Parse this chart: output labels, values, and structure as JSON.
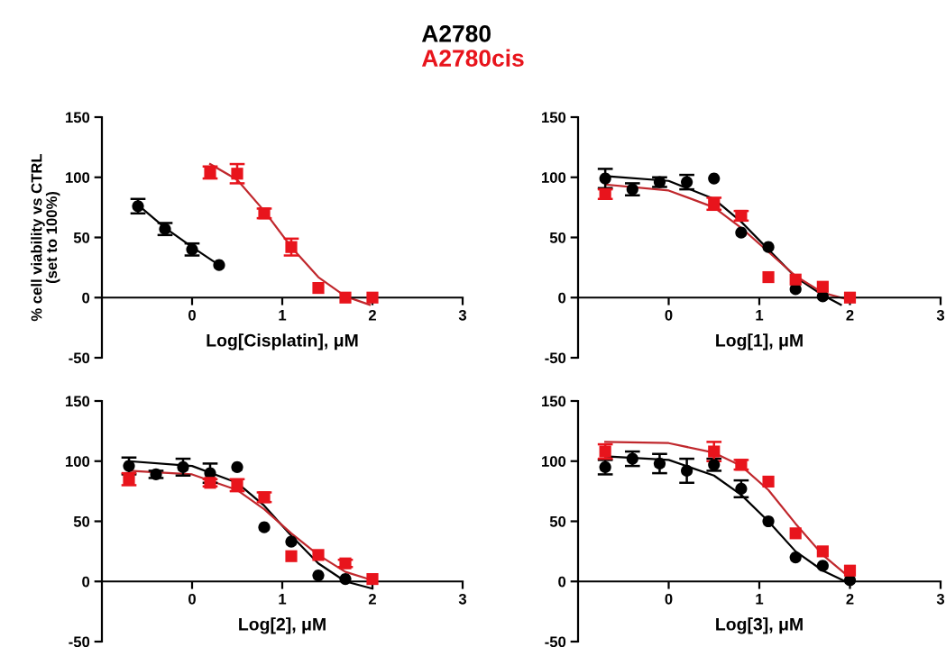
{
  "chart_data": [
    {
      "type": "scatter",
      "xlabel": "Log[Cisplatin], μM",
      "ylabel": "% cell viability vs CTRL\n(set to 100%)",
      "xlim": [
        -1,
        3
      ],
      "ylim": [
        -50,
        150
      ],
      "xticks": [
        0,
        1,
        2,
        3
      ],
      "yticks": [
        -50,
        0,
        50,
        100,
        150
      ],
      "grid": false,
      "legend": "top",
      "series": [
        {
          "type": "line",
          "color": "#000000",
          "x": [
            -0.6,
            -0.3,
            0,
            0.3
          ],
          "values": [
            77,
            58,
            42,
            27
          ]
        },
        {
          "type": "line",
          "color": "#c0282d",
          "x": [
            0.2,
            0.5,
            0.8,
            1.1,
            1.4,
            1.7,
            1.97
          ],
          "values": [
            111,
            98,
            72,
            42,
            17,
            1,
            -6
          ]
        },
        {
          "name": "A2780",
          "color": "#000000",
          "marker": "circle",
          "x": [
            -0.6,
            -0.3,
            0,
            0.3
          ],
          "values": [
            76,
            57,
            40,
            27
          ],
          "errors": [
            6,
            5,
            5,
            null
          ]
        },
        {
          "name": "A2780cis",
          "color": "#e8141c",
          "marker": "square",
          "x": [
            0.2,
            0.5,
            0.8,
            1.1,
            1.4,
            1.7,
            2.0
          ],
          "values": [
            104,
            103,
            70,
            42,
            8,
            0,
            0
          ],
          "errors": [
            5,
            8,
            4,
            7,
            null,
            null,
            null
          ]
        }
      ]
    },
    {
      "type": "scatter",
      "xlabel": "Log[1], μM",
      "xlim": [
        -1,
        3
      ],
      "ylim": [
        -50,
        150
      ],
      "xticks": [
        0,
        1,
        2,
        3
      ],
      "yticks": [
        -50,
        0,
        50,
        100,
        150
      ],
      "grid": false,
      "series": [
        {
          "type": "line",
          "color": "#000000",
          "x": [
            -0.7,
            0,
            0.5,
            0.8,
            1.1,
            1.4,
            1.7,
            1.9
          ],
          "values": [
            101,
            97,
            82,
            63,
            40,
            17,
            2,
            -6
          ]
        },
        {
          "type": "line",
          "color": "#c0282d",
          "x": [
            -0.7,
            0,
            0.5,
            0.8,
            1.1,
            1.4,
            1.7,
            2.0
          ],
          "values": [
            94,
            89,
            75,
            58,
            38,
            18,
            4,
            -2
          ]
        },
        {
          "color": "#000000",
          "marker": "circle",
          "x": [
            -0.7,
            -0.4,
            -0.1,
            0.2,
            0.5,
            0.8,
            1.1,
            1.4,
            1.7
          ],
          "values": [
            99,
            90,
            96,
            96,
            99,
            54,
            42,
            7,
            1
          ],
          "errors": [
            8,
            5,
            4,
            6,
            null,
            null,
            null,
            null,
            null
          ]
        },
        {
          "color": "#e8141c",
          "marker": "square",
          "x": [
            -0.7,
            0.5,
            0.8,
            1.1,
            1.4,
            1.7,
            2.0
          ],
          "values": [
            86,
            78,
            68,
            17,
            15,
            9,
            0
          ],
          "errors": [
            4,
            5,
            4,
            null,
            null,
            null,
            null
          ]
        }
      ]
    },
    {
      "type": "scatter",
      "xlabel": "Log[2], μM",
      "xlim": [
        -1,
        3
      ],
      "ylim": [
        -50,
        150
      ],
      "xticks": [
        0,
        1,
        2,
        3
      ],
      "yticks": [
        -50,
        0,
        50,
        100,
        150
      ],
      "grid": false,
      "series": [
        {
          "type": "line",
          "color": "#000000",
          "x": [
            -0.7,
            0,
            0.5,
            0.8,
            1.1,
            1.4,
            1.7,
            2.0
          ],
          "values": [
            100,
            96,
            82,
            63,
            38,
            15,
            0,
            -6
          ]
        },
        {
          "type": "line",
          "color": "#c0282d",
          "x": [
            -0.7,
            0,
            0.5,
            0.8,
            1.1,
            1.4,
            1.7,
            2.0
          ],
          "values": [
            92,
            89,
            76,
            60,
            40,
            22,
            8,
            1
          ]
        },
        {
          "color": "#000000",
          "marker": "circle",
          "x": [
            -0.7,
            -0.4,
            -0.1,
            0.2,
            0.5,
            0.8,
            1.1,
            1.4,
            1.7
          ],
          "values": [
            96,
            89,
            95,
            90,
            95,
            45,
            33,
            5,
            2
          ],
          "errors": [
            7,
            3,
            7,
            8,
            null,
            null,
            null,
            null,
            null
          ]
        },
        {
          "color": "#e8141c",
          "marker": "square",
          "x": [
            -0.7,
            0.2,
            0.5,
            0.8,
            1.1,
            1.4,
            1.7,
            2.0
          ],
          "values": [
            85,
            82,
            80,
            70,
            21,
            22,
            15,
            2
          ],
          "errors": [
            5,
            3,
            5,
            4,
            null,
            null,
            3,
            null
          ]
        }
      ]
    },
    {
      "type": "scatter",
      "xlabel": "Log[3], μM",
      "xlim": [
        -1,
        3
      ],
      "ylim": [
        -50,
        150
      ],
      "xticks": [
        0,
        1,
        2,
        3
      ],
      "yticks": [
        -50,
        0,
        50,
        100,
        150
      ],
      "grid": false,
      "series": [
        {
          "type": "line",
          "color": "#000000",
          "x": [
            -0.7,
            0,
            0.5,
            0.8,
            1.1,
            1.4,
            1.7,
            1.95
          ],
          "values": [
            104,
            101,
            88,
            72,
            50,
            25,
            9,
            0
          ]
        },
        {
          "type": "line",
          "color": "#c0282d",
          "x": [
            -0.7,
            0,
            0.5,
            0.8,
            1.1,
            1.4,
            1.7,
            2.0
          ],
          "values": [
            116,
            115,
            107,
            96,
            76,
            48,
            22,
            3
          ]
        },
        {
          "color": "#000000",
          "marker": "circle",
          "x": [
            -0.7,
            -0.4,
            -0.1,
            0.2,
            0.5,
            0.8,
            1.1,
            1.4,
            1.7,
            2.0
          ],
          "values": [
            95,
            102,
            98,
            92,
            97,
            77,
            50,
            20,
            13,
            1
          ],
          "errors": [
            6,
            6,
            8,
            10,
            5,
            7,
            null,
            null,
            null,
            null
          ]
        },
        {
          "color": "#e8141c",
          "marker": "square",
          "x": [
            -0.7,
            0.5,
            0.8,
            1.1,
            1.4,
            1.7,
            2.0
          ],
          "values": [
            108,
            108,
            97,
            83,
            40,
            25,
            9
          ],
          "errors": [
            6,
            8,
            4,
            null,
            null,
            null,
            null
          ]
        }
      ]
    }
  ]
}
